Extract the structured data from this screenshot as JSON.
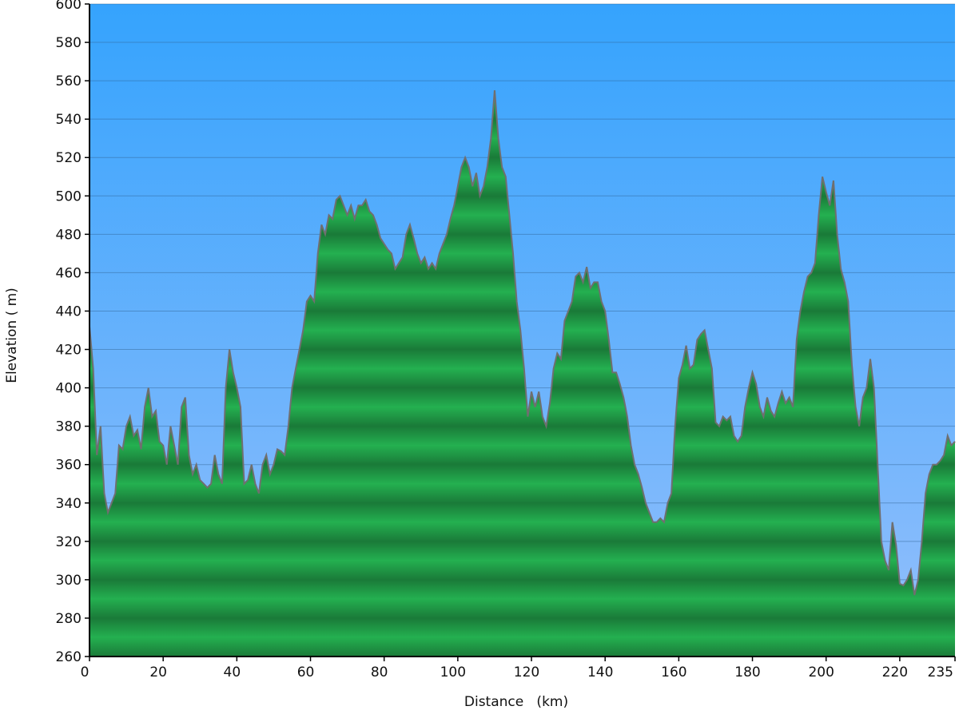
{
  "chart_data": {
    "type": "area",
    "x_label": "Distance   (km)",
    "y_label": "Elevation ( m)",
    "color": "#22a84a",
    "line_color": "#6f6f6f",
    "grid": true,
    "xlim": [
      0,
      235
    ],
    "ylim": [
      260,
      600
    ],
    "xticks": [
      0,
      20,
      40,
      60,
      80,
      100,
      120,
      140,
      160,
      180,
      200,
      220,
      235
    ],
    "yticks": [
      260,
      280,
      300,
      320,
      340,
      360,
      380,
      400,
      420,
      440,
      460,
      480,
      500,
      520,
      540,
      560,
      580,
      600
    ],
    "x": [
      0,
      1,
      2,
      3,
      4,
      5,
      6,
      7,
      8,
      9,
      10,
      11,
      12,
      13,
      14,
      15,
      16,
      17,
      18,
      19,
      20,
      21,
      22,
      23,
      24,
      25,
      26,
      27,
      28,
      29,
      30,
      31,
      32,
      33,
      34,
      35,
      36,
      37,
      38,
      39,
      40,
      41,
      42,
      43,
      44,
      45,
      46,
      47,
      48,
      49,
      50,
      51,
      52,
      53,
      54,
      55,
      56,
      57,
      58,
      59,
      60,
      61,
      62,
      63,
      64,
      65,
      66,
      67,
      68,
      69,
      70,
      71,
      72,
      73,
      74,
      75,
      76,
      77,
      78,
      79,
      80,
      81,
      82,
      83,
      84,
      85,
      86,
      87,
      88,
      89,
      90,
      91,
      92,
      93,
      94,
      95,
      96,
      97,
      98,
      99,
      100,
      101,
      102,
      103,
      104,
      105,
      106,
      107,
      108,
      109,
      110,
      111,
      112,
      113,
      114,
      115,
      116,
      117,
      118,
      119,
      120,
      121,
      122,
      123,
      124,
      125,
      126,
      127,
      128,
      129,
      130,
      131,
      132,
      133,
      134,
      135,
      136,
      137,
      138,
      139,
      140,
      141,
      142,
      143,
      144,
      145,
      146,
      147,
      148,
      149,
      150,
      151,
      152,
      153,
      154,
      155,
      156,
      157,
      158,
      159,
      160,
      161,
      162,
      163,
      164,
      165,
      166,
      167,
      168,
      169,
      170,
      171,
      172,
      173,
      174,
      175,
      176,
      177,
      178,
      179,
      180,
      181,
      182,
      183,
      184,
      185,
      186,
      187,
      188,
      189,
      190,
      191,
      192,
      193,
      194,
      195,
      196,
      197,
      198,
      199,
      200,
      201,
      202,
      203,
      204,
      205,
      206,
      207,
      208,
      209,
      210,
      211,
      212,
      213,
      214,
      215,
      216,
      217,
      218,
      219,
      220,
      221,
      222,
      223,
      224,
      225,
      226,
      227,
      228,
      229,
      230,
      231,
      232,
      233,
      234,
      235
    ],
    "values": [
      432,
      410,
      365,
      380,
      345,
      335,
      340,
      345,
      370,
      368,
      380,
      385,
      375,
      378,
      368,
      390,
      400,
      385,
      388,
      372,
      370,
      360,
      380,
      370,
      360,
      390,
      395,
      365,
      355,
      360,
      352,
      350,
      348,
      350,
      365,
      355,
      350,
      400,
      420,
      408,
      400,
      390,
      350,
      352,
      360,
      350,
      345,
      360,
      365,
      355,
      360,
      368,
      367,
      365,
      380,
      400,
      410,
      420,
      430,
      445,
      448,
      445,
      470,
      485,
      480,
      490,
      488,
      498,
      500,
      495,
      490,
      495,
      488,
      495,
      495,
      498,
      492,
      490,
      485,
      478,
      475,
      472,
      470,
      462,
      465,
      468,
      480,
      485,
      478,
      470,
      465,
      468,
      462,
      465,
      462,
      470,
      475,
      480,
      488,
      495,
      505,
      515,
      520,
      515,
      505,
      512,
      500,
      505,
      515,
      530,
      555,
      530,
      515,
      510,
      490,
      470,
      445,
      430,
      410,
      385,
      398,
      390,
      398,
      385,
      380,
      392,
      410,
      418,
      415,
      435,
      440,
      445,
      458,
      460,
      455,
      463,
      452,
      455,
      455,
      445,
      440,
      425,
      408,
      408,
      402,
      395,
      385,
      370,
      360,
      355,
      348,
      340,
      335,
      330,
      330,
      332,
      330,
      340,
      345,
      380,
      405,
      412,
      422,
      410,
      412,
      425,
      428,
      430,
      420,
      410,
      382,
      380,
      385,
      383,
      385,
      375,
      372,
      375,
      390,
      400,
      408,
      402,
      390,
      385,
      395,
      388,
      385,
      392,
      398,
      392,
      395,
      390,
      425,
      440,
      450,
      458,
      460,
      465,
      490,
      510,
      502,
      495,
      508,
      480,
      462,
      455,
      445,
      412,
      390,
      380,
      395,
      400,
      415,
      400,
      360,
      320,
      310,
      305,
      330,
      318,
      298,
      297,
      300,
      305,
      292,
      300,
      320,
      345,
      355,
      360,
      360,
      362,
      365,
      375,
      370,
      372
    ]
  }
}
